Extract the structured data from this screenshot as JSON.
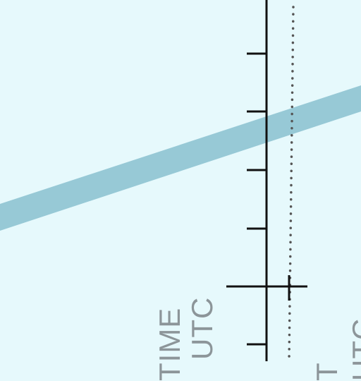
{
  "chart_labels": {
    "time_label": "TIME",
    "utc_label_left": "UTC",
    "t_label": "T",
    "utc_label_right": "UTC"
  },
  "colors": {
    "background": "#e6f9fc",
    "band": "#97c9d6",
    "axis": "#111111",
    "dotted_line": "#555555",
    "label_text": "#8c9599"
  }
}
